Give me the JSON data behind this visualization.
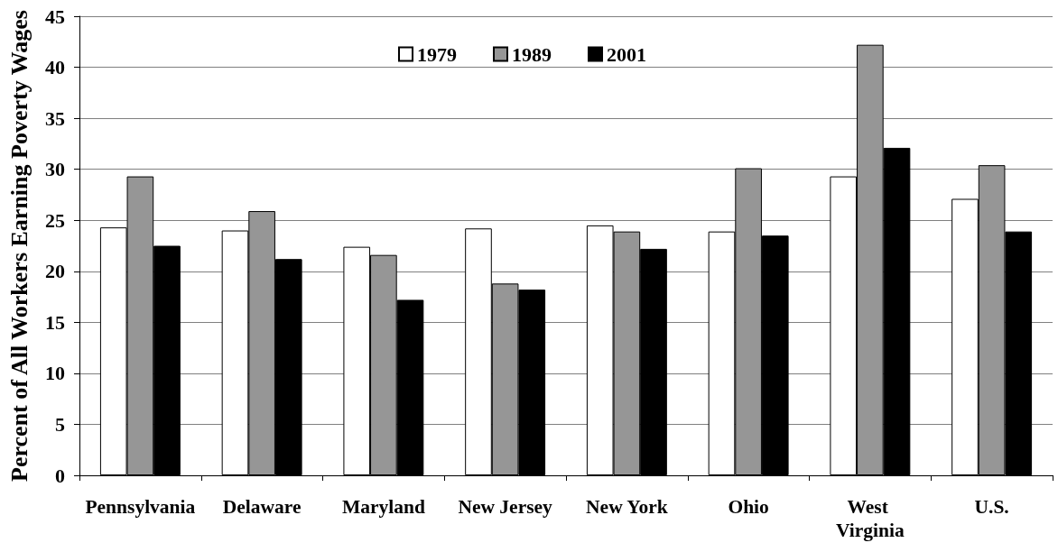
{
  "chart_data": {
    "type": "bar",
    "ylabel": "Percent of All Workers Earning Poverty Wages",
    "categories": [
      "Pennsylvania",
      "Delaware",
      "Maryland",
      "New Jersey",
      "New York",
      "Ohio",
      "West Virginia",
      "U.S."
    ],
    "series": [
      {
        "name": "1979",
        "color": "#ffffff",
        "values": [
          24.3,
          24.0,
          22.4,
          24.2,
          24.5,
          23.9,
          29.3,
          27.1
        ]
      },
      {
        "name": "1989",
        "color": "#969696",
        "values": [
          29.3,
          25.9,
          21.6,
          18.8,
          23.9,
          30.1,
          42.2,
          30.4
        ]
      },
      {
        "name": "2001",
        "color": "#000000",
        "values": [
          22.5,
          21.2,
          17.2,
          18.2,
          22.2,
          23.5,
          32.1,
          23.9
        ]
      }
    ],
    "ylim": [
      0,
      45
    ],
    "yticks": [
      0,
      5,
      10,
      15,
      20,
      25,
      30,
      35,
      40,
      45
    ],
    "grid": "y",
    "legend": "top"
  }
}
